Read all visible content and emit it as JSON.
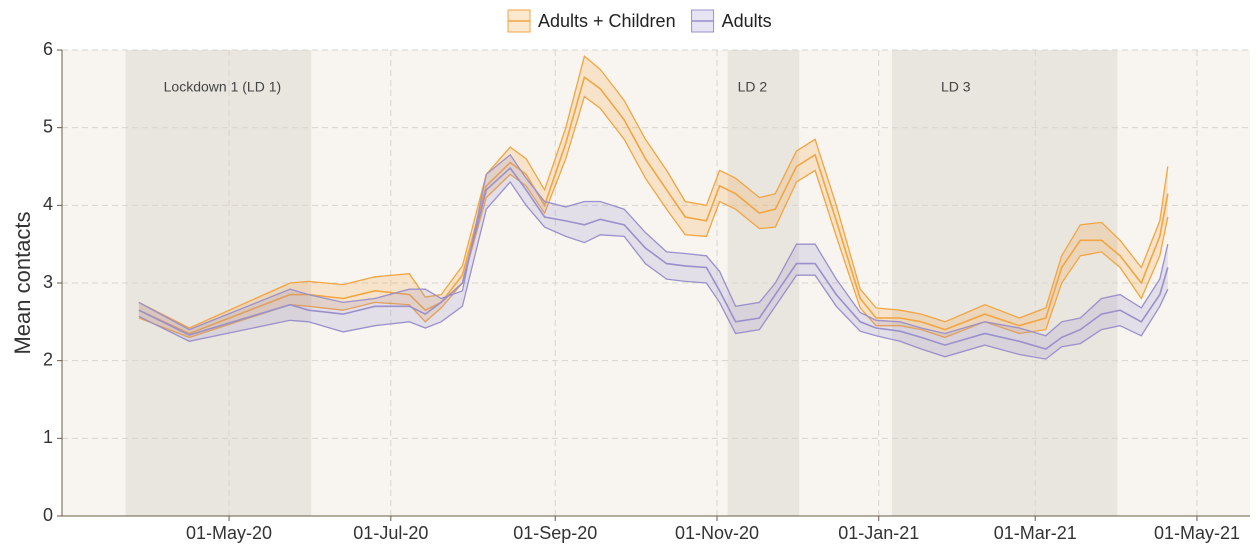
{
  "chart_data": {
    "type": "ribbon-line",
    "y_label": "Mean contacts",
    "ylim": [
      0,
      6
    ],
    "yticks": [
      0,
      1,
      2,
      3,
      4,
      5,
      6
    ],
    "xlim": [
      "2020-02-28",
      "2021-05-21"
    ],
    "xticks": [
      {
        "value": "2020-05-01",
        "label": "01-May-20"
      },
      {
        "value": "2020-07-01",
        "label": "01-Jul-20"
      },
      {
        "value": "2020-09-01",
        "label": "01-Sep-20"
      },
      {
        "value": "2020-11-01",
        "label": "01-Nov-20"
      },
      {
        "value": "2021-01-01",
        "label": "01-Jan-21"
      },
      {
        "value": "2021-03-01",
        "label": "01-Mar-21"
      },
      {
        "value": "2021-05-01",
        "label": "01-May-21"
      }
    ],
    "grid": true,
    "legend": "top",
    "shaded_periods": [
      {
        "label": "Lockdown 1 (LD 1)",
        "start": "2020-03-23",
        "end": "2020-06-01"
      },
      {
        "label": "LD 2",
        "start": "2020-11-05",
        "end": "2020-12-02"
      },
      {
        "label": "LD 3",
        "start": "2021-01-06",
        "end": "2021-04-01"
      }
    ],
    "x": [
      "2020-03-28",
      "2020-04-16",
      "2020-05-24",
      "2020-05-31",
      "2020-06-13",
      "2020-06-25",
      "2020-07-08",
      "2020-07-14",
      "2020-07-20",
      "2020-07-28",
      "2020-08-06",
      "2020-08-15",
      "2020-08-21",
      "2020-08-28",
      "2020-09-05",
      "2020-09-12",
      "2020-09-18",
      "2020-09-27",
      "2020-10-05",
      "2020-10-13",
      "2020-10-20",
      "2020-10-28",
      "2020-11-02",
      "2020-11-08",
      "2020-11-17",
      "2020-11-23",
      "2020-12-01",
      "2020-12-08",
      "2020-12-16",
      "2020-12-25",
      "2020-12-31",
      "2021-01-09",
      "2021-01-17",
      "2021-01-26",
      "2021-02-10",
      "2021-02-23",
      "2021-03-05",
      "2021-03-11",
      "2021-03-18",
      "2021-03-26",
      "2021-04-02",
      "2021-04-10",
      "2021-04-17",
      "2021-04-20"
    ],
    "series": [
      {
        "name": "Adults + Children",
        "color": "#f2a541",
        "values": [
          2.65,
          2.35,
          2.85,
          2.85,
          2.8,
          2.9,
          2.85,
          2.65,
          2.75,
          3.1,
          4.25,
          4.55,
          4.4,
          4.0,
          4.8,
          5.65,
          5.5,
          5.1,
          4.6,
          4.2,
          3.85,
          3.8,
          4.25,
          4.15,
          3.9,
          3.95,
          4.5,
          4.65,
          3.8,
          2.8,
          2.55,
          2.55,
          2.5,
          2.4,
          2.6,
          2.45,
          2.55,
          3.2,
          3.55,
          3.55,
          3.35,
          3.0,
          3.6,
          4.15
        ],
        "lower": [
          2.55,
          2.3,
          2.72,
          2.7,
          2.65,
          2.75,
          2.72,
          2.5,
          2.68,
          3.0,
          4.1,
          4.4,
          4.25,
          3.9,
          4.6,
          5.4,
          5.25,
          4.85,
          4.35,
          3.95,
          3.62,
          3.6,
          4.05,
          3.95,
          3.7,
          3.72,
          4.3,
          4.45,
          3.6,
          2.68,
          2.45,
          2.45,
          2.4,
          2.3,
          2.5,
          2.35,
          2.4,
          3.0,
          3.35,
          3.4,
          3.2,
          2.8,
          3.35,
          3.85
        ],
        "upper": [
          2.75,
          2.42,
          3.0,
          3.02,
          2.98,
          3.08,
          3.12,
          2.82,
          2.85,
          3.22,
          4.4,
          4.75,
          4.6,
          4.2,
          5.0,
          5.92,
          5.75,
          5.35,
          4.85,
          4.45,
          4.05,
          4.0,
          4.45,
          4.35,
          4.1,
          4.15,
          4.7,
          4.85,
          4.0,
          2.92,
          2.68,
          2.65,
          2.6,
          2.5,
          2.72,
          2.55,
          2.68,
          3.35,
          3.75,
          3.78,
          3.55,
          3.2,
          3.8,
          4.5
        ]
      },
      {
        "name": "Adults",
        "color": "#9a90cb",
        "values": [
          2.65,
          2.33,
          2.72,
          2.65,
          2.6,
          2.7,
          2.7,
          2.6,
          2.75,
          3.0,
          4.2,
          4.48,
          4.2,
          3.85,
          3.8,
          3.75,
          3.82,
          3.75,
          3.45,
          3.25,
          3.22,
          3.2,
          2.9,
          2.5,
          2.55,
          2.85,
          3.25,
          3.25,
          2.85,
          2.5,
          2.42,
          2.38,
          2.3,
          2.2,
          2.35,
          2.25,
          2.15,
          2.3,
          2.4,
          2.6,
          2.65,
          2.5,
          2.85,
          3.2
        ],
        "lower": [
          2.57,
          2.25,
          2.52,
          2.5,
          2.37,
          2.45,
          2.5,
          2.42,
          2.5,
          2.7,
          3.95,
          4.3,
          4.0,
          3.72,
          3.6,
          3.52,
          3.62,
          3.6,
          3.25,
          3.05,
          3.02,
          3.0,
          2.75,
          2.35,
          2.4,
          2.7,
          3.1,
          3.1,
          2.7,
          2.38,
          2.32,
          2.25,
          2.15,
          2.05,
          2.2,
          2.08,
          2.02,
          2.18,
          2.22,
          2.4,
          2.45,
          2.32,
          2.7,
          2.92
        ],
        "upper": [
          2.75,
          2.4,
          2.92,
          2.85,
          2.75,
          2.8,
          2.92,
          2.92,
          2.8,
          2.9,
          4.4,
          4.65,
          4.35,
          4.05,
          3.98,
          4.05,
          4.05,
          3.95,
          3.65,
          3.4,
          3.38,
          3.35,
          3.15,
          2.7,
          2.75,
          3.0,
          3.5,
          3.5,
          3.05,
          2.62,
          2.52,
          2.5,
          2.42,
          2.35,
          2.5,
          2.42,
          2.32,
          2.5,
          2.55,
          2.8,
          2.85,
          2.68,
          3.05,
          3.5
        ]
      }
    ]
  }
}
